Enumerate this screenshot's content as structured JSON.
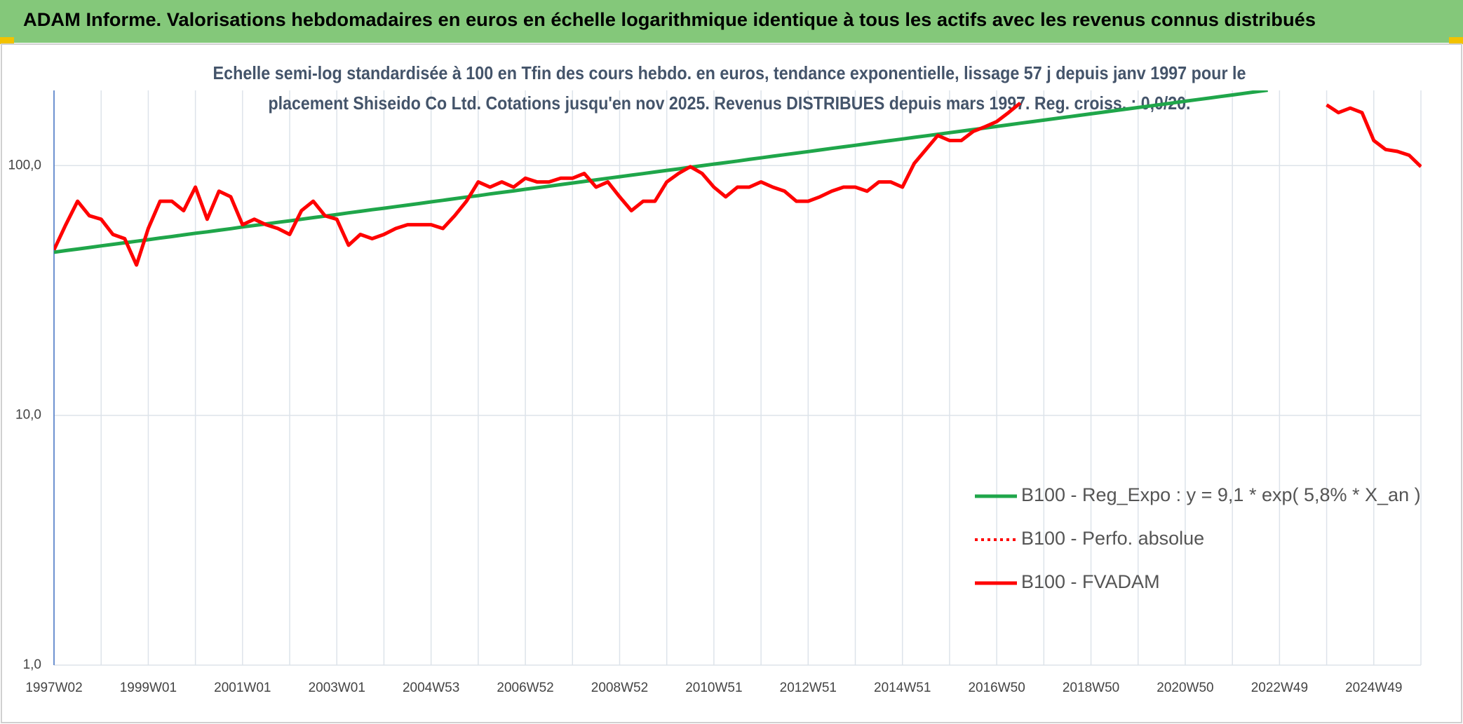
{
  "chart_data": {
    "type": "line",
    "title": "ADAM Informe. Valorisations hebdomadaires en euros en échelle logarithmique identique à tous les actifs avec les revenus connus distribués",
    "subtitle": [
      "Echelle semi-log standardisée à 100 en Tfin des cours hebdo. en euros, tendance exponentielle, lissage 57 j depuis janv 1997 pour le",
      "placement Shiseido Co Ltd. Cotations jusqu'en nov 2025. Revenus DISTRIBUES depuis mars 1997. Reg. croiss. : 0,0/20."
    ],
    "log_scale": true,
    "grid": true,
    "legend": "lower right",
    "ylim": [
      1,
      200
    ],
    "yticks": [
      {
        "value": 1,
        "label": "1,0"
      },
      {
        "value": 10,
        "label": "10,0"
      },
      {
        "value": 100,
        "label": "100,0"
      }
    ],
    "categories": [
      "1997W02",
      null,
      null,
      null,
      null,
      null,
      null,
      null,
      "1999W01",
      null,
      null,
      null,
      null,
      null,
      null,
      null,
      "2001W01",
      null,
      null,
      null,
      null,
      null,
      null,
      null,
      "2003W01",
      null,
      null,
      null,
      null,
      null,
      null,
      null,
      "2004W53",
      null,
      null,
      null,
      null,
      null,
      null,
      null,
      "2006W52",
      null,
      null,
      null,
      null,
      null,
      null,
      null,
      "2008W52",
      null,
      null,
      null,
      null,
      null,
      null,
      null,
      "2010W51",
      null,
      null,
      null,
      null,
      null,
      null,
      null,
      "2012W51",
      null,
      null,
      null,
      null,
      null,
      null,
      null,
      "2014W51",
      null,
      null,
      null,
      null,
      null,
      null,
      null,
      "2016W50",
      null,
      null,
      null,
      null,
      null,
      null,
      null,
      "2018W50",
      null,
      null,
      null,
      null,
      null,
      null,
      null,
      "2020W50",
      null,
      null,
      null,
      null,
      null,
      null,
      null,
      "2022W49",
      null,
      null,
      null,
      null,
      null,
      null,
      null,
      "2024W49",
      null,
      null,
      null,
      null
    ],
    "series": [
      {
        "name": "B100 - Reg_Expo : y = 9,1 * exp( 5,8% *  X_an )",
        "color": "#1fa64a",
        "style": "solid",
        "values": [
          45.0,
          45.7,
          46.3,
          47.0,
          47.7,
          48.4,
          49.1,
          49.8,
          50.5,
          51.3,
          52.0,
          52.8,
          53.6,
          54.3,
          55.1,
          55.9,
          56.8,
          57.6,
          58.4,
          59.3,
          60.1,
          61.0,
          61.9,
          62.8,
          63.7,
          64.7,
          65.6,
          66.6,
          67.5,
          68.5,
          69.5,
          70.5,
          71.6,
          72.6,
          73.7,
          74.8,
          75.8,
          77.0,
          78.1,
          79.2,
          80.4,
          81.5,
          82.7,
          83.9,
          85.2,
          86.4,
          87.7,
          89.0,
          90.3,
          91.6,
          92.9,
          94.3,
          95.7,
          97.0,
          98.5,
          99.9,
          101.4,
          102.8,
          104.3,
          105.9,
          107.4,
          109.0,
          110.6,
          112.2,
          113.8,
          115.5,
          117.2,
          118.9,
          120.6,
          122.4,
          124.2,
          126.0,
          127.8,
          129.7,
          131.6,
          133.5,
          135.5,
          137.4,
          139.4,
          141.5,
          143.5,
          145.6,
          147.8,
          149.9,
          152.1,
          154.3,
          156.6,
          158.9,
          161.2,
          163.6,
          165.9,
          168.4,
          170.8,
          173.3,
          175.8,
          178.4,
          181.0,
          183.7,
          186.3,
          189.1,
          191.8,
          194.6,
          197.5,
          200.4,
          null,
          null,
          null,
          null,
          null,
          null,
          null,
          null,
          null,
          null,
          null,
          null,
          null
        ]
      },
      {
        "name": "B100 - Perfo. absolue",
        "color": "#ff0000",
        "style": "dotted",
        "values": [
          46,
          58,
          72,
          63,
          61,
          53,
          51,
          40,
          56,
          72,
          72,
          66,
          82,
          61,
          79,
          75,
          58,
          61,
          58,
          56,
          53,
          66,
          72,
          63,
          61,
          48,
          53,
          51,
          53,
          56,
          58,
          58,
          58,
          56,
          63,
          72,
          86,
          82,
          86,
          82,
          89,
          86,
          86,
          89,
          89,
          93,
          82,
          86,
          75,
          66,
          72,
          72,
          86,
          93,
          99,
          93,
          82,
          75,
          82,
          82,
          86,
          82,
          79,
          72,
          72,
          75,
          79,
          82,
          82,
          79,
          86,
          86,
          82,
          102,
          116,
          132,
          126,
          126,
          137,
          143,
          150,
          163,
          178,
          null,
          null,
          null,
          null,
          null,
          null,
          null,
          null,
          null,
          null,
          null,
          null,
          null,
          null,
          null,
          null,
          null,
          null,
          null,
          null,
          null,
          null,
          null,
          null,
          null,
          175,
          163,
          170,
          163,
          126,
          116,
          114,
          110,
          99
        ]
      },
      {
        "name": "B100 - FVADAM",
        "color": "#ff0000",
        "style": "solid",
        "values": [
          46,
          58,
          72,
          63,
          61,
          53,
          51,
          40,
          56,
          72,
          72,
          66,
          82,
          61,
          79,
          75,
          58,
          61,
          58,
          56,
          53,
          66,
          72,
          63,
          61,
          48,
          53,
          51,
          53,
          56,
          58,
          58,
          58,
          56,
          63,
          72,
          86,
          82,
          86,
          82,
          89,
          86,
          86,
          89,
          89,
          93,
          82,
          86,
          75,
          66,
          72,
          72,
          86,
          93,
          99,
          93,
          82,
          75,
          82,
          82,
          86,
          82,
          79,
          72,
          72,
          75,
          79,
          82,
          82,
          79,
          86,
          86,
          82,
          102,
          116,
          132,
          126,
          126,
          137,
          143,
          150,
          163,
          178,
          null,
          null,
          null,
          null,
          null,
          null,
          null,
          null,
          null,
          null,
          null,
          null,
          null,
          null,
          null,
          null,
          null,
          null,
          null,
          null,
          null,
          null,
          null,
          null,
          null,
          175,
          163,
          170,
          163,
          126,
          116,
          114,
          110,
          99
        ]
      }
    ]
  }
}
